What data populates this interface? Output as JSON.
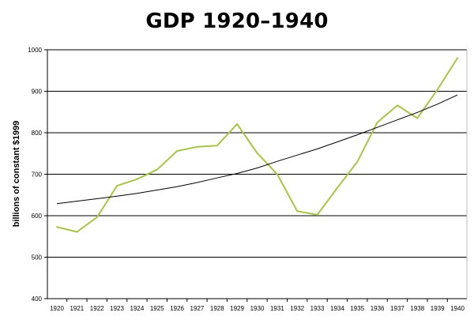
{
  "chart_data": {
    "type": "line",
    "title": "GDP 1920–1940",
    "xlabel": "",
    "ylabel": "billions of constant $1999",
    "ylim": [
      400,
      1000
    ],
    "yticks": [
      400,
      500,
      600,
      700,
      800,
      900,
      1000
    ],
    "grid": "horizontal",
    "x": [
      "1920",
      "1921",
      "1922",
      "1923",
      "1924",
      "1925",
      "1926",
      "1927",
      "1928",
      "1929",
      "1930",
      "1931",
      "1932",
      "1933",
      "1934",
      "1935",
      "1936",
      "1937",
      "1938",
      "1939",
      "1940"
    ],
    "series": [
      {
        "kind": "data",
        "color": "#a6c34a",
        "values": [
          573,
          561,
          596,
          672,
          688,
          711,
          756,
          766,
          769,
          821,
          751,
          700,
          611,
          602,
          667,
          730,
          825,
          866,
          835,
          904,
          980
        ]
      },
      {
        "kind": "trend",
        "color": "#000000",
        "values": [
          629,
          635,
          641,
          647,
          654,
          662,
          670,
          680,
          691,
          702,
          715,
          731,
          746,
          761,
          778,
          795,
          813,
          831,
          849,
          869,
          891
        ]
      }
    ]
  }
}
